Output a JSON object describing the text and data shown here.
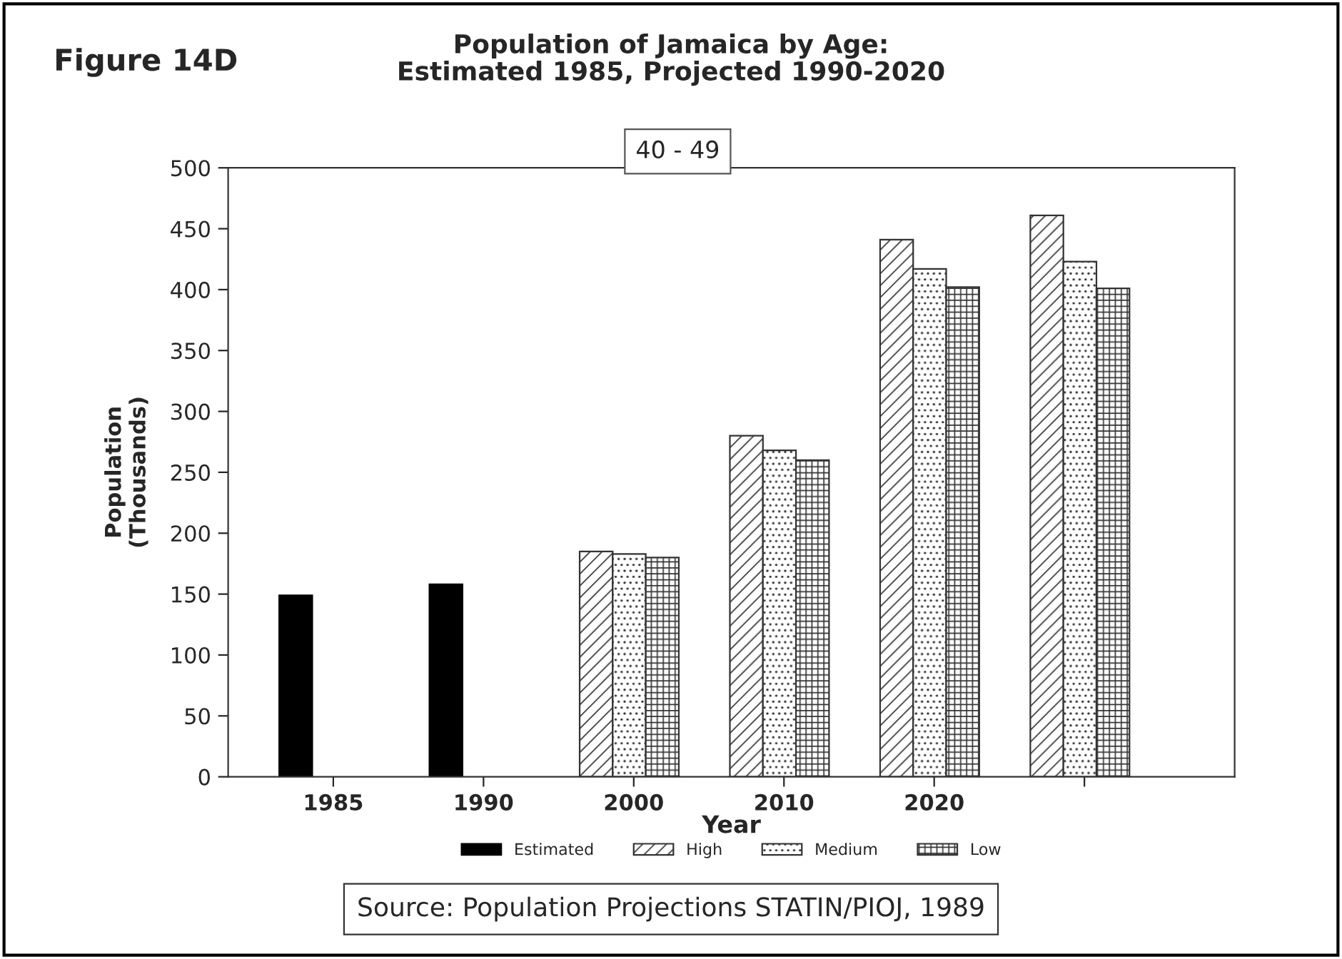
{
  "chart_data": {
    "type": "bar",
    "title": "Population of Jamaica by Age:\nEstimated 1985, Projected 1990-2020",
    "subtitle": "40 - 49",
    "xlabel": "Year",
    "ylabel": "Population\n(Thousands)",
    "annotations": [
      "Figure 14D",
      "Source: Population Projections STATIN/PIOJ, 1989"
    ],
    "categories": [
      "1985",
      "1990",
      "2000",
      "2010",
      "2020",
      null
    ],
    "series": [
      {
        "name": "Estimated",
        "color": "#000000",
        "values": [
          149,
          158,
          null,
          null,
          null,
          null
        ]
      },
      {
        "name": "High",
        "color": "#333333",
        "values": [
          null,
          null,
          185,
          280,
          441,
          461
        ]
      },
      {
        "name": "Medium",
        "color": "#333333",
        "values": [
          null,
          null,
          183,
          268,
          417,
          423
        ]
      },
      {
        "name": "Low",
        "color": "#333333",
        "values": [
          null,
          null,
          180,
          260,
          402,
          401
        ]
      }
    ],
    "ylim": [
      0,
      500
    ],
    "yticks": [
      0,
      50,
      100,
      150,
      200,
      250,
      300,
      350,
      400,
      450,
      500
    ],
    "grid": false,
    "legend": "bottom"
  }
}
